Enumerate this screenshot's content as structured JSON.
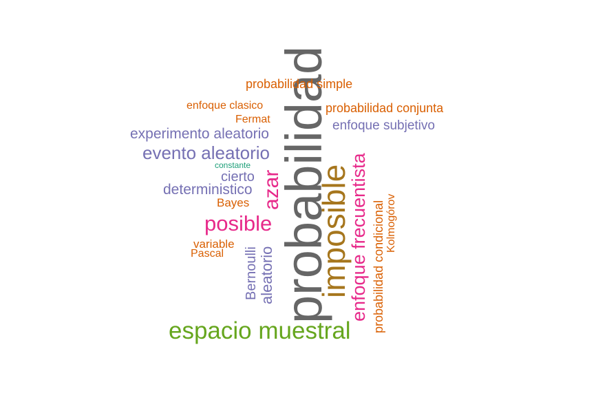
{
  "colors": {
    "gray": "#666666",
    "orange": "#D95F02",
    "purple": "#7570B3",
    "magenta": "#E7298A",
    "green": "#66A61E",
    "gold": "#A6761D",
    "teal": "#1B9E77"
  },
  "words": [
    {
      "id": "probabilidad",
      "text": "probabilidad",
      "color": "gray",
      "rotated": true
    },
    {
      "id": "imposible",
      "text": "imposible",
      "color": "gold",
      "rotated": true
    },
    {
      "id": "espacio-muestral",
      "text": "espacio muestral",
      "color": "green",
      "rotated": false
    },
    {
      "id": "posible",
      "text": "posible",
      "color": "magenta",
      "rotated": false
    },
    {
      "id": "enfoque-frecuentista",
      "text": "enfoque frecuentista",
      "color": "magenta",
      "rotated": true
    },
    {
      "id": "azar",
      "text": "azar",
      "color": "magenta",
      "rotated": true
    },
    {
      "id": "evento-aleatorio",
      "text": "evento aleatorio",
      "color": "purple",
      "rotated": false
    },
    {
      "id": "experimento-aleatorio",
      "text": "experimento aleatorio",
      "color": "purple",
      "rotated": false
    },
    {
      "id": "deterministico",
      "text": "deterministico",
      "color": "purple",
      "rotated": false
    },
    {
      "id": "cierto",
      "text": "cierto",
      "color": "purple",
      "rotated": false
    },
    {
      "id": "aleatorio",
      "text": "aleatorio",
      "color": "purple",
      "rotated": true
    },
    {
      "id": "bernoulli",
      "text": "Bernoulli",
      "color": "purple",
      "rotated": true
    },
    {
      "id": "enfoque-subjetivo",
      "text": "enfoque subjetivo",
      "color": "purple",
      "rotated": false
    },
    {
      "id": "probabilidad-simple",
      "text": "probabilidad simple",
      "color": "orange",
      "rotated": false
    },
    {
      "id": "probabilidad-conjunta",
      "text": "probabilidad conjunta",
      "color": "orange",
      "rotated": false
    },
    {
      "id": "enfoque-clasico",
      "text": "enfoque clasico",
      "color": "orange",
      "rotated": false
    },
    {
      "id": "fermat",
      "text": "Fermat",
      "color": "orange",
      "rotated": false
    },
    {
      "id": "bayes",
      "text": "Bayes",
      "color": "orange",
      "rotated": false
    },
    {
      "id": "variable",
      "text": "variable",
      "color": "orange",
      "rotated": false
    },
    {
      "id": "pascal",
      "text": "Pascal",
      "color": "orange",
      "rotated": false
    },
    {
      "id": "probabilidad-condicional",
      "text": "probabilidad condicional",
      "color": "orange",
      "rotated": true
    },
    {
      "id": "kolmogorov",
      "text": "Kolmogórov",
      "color": "orange",
      "rotated": true
    },
    {
      "id": "constante",
      "text": "constante",
      "color": "teal",
      "rotated": false
    }
  ]
}
